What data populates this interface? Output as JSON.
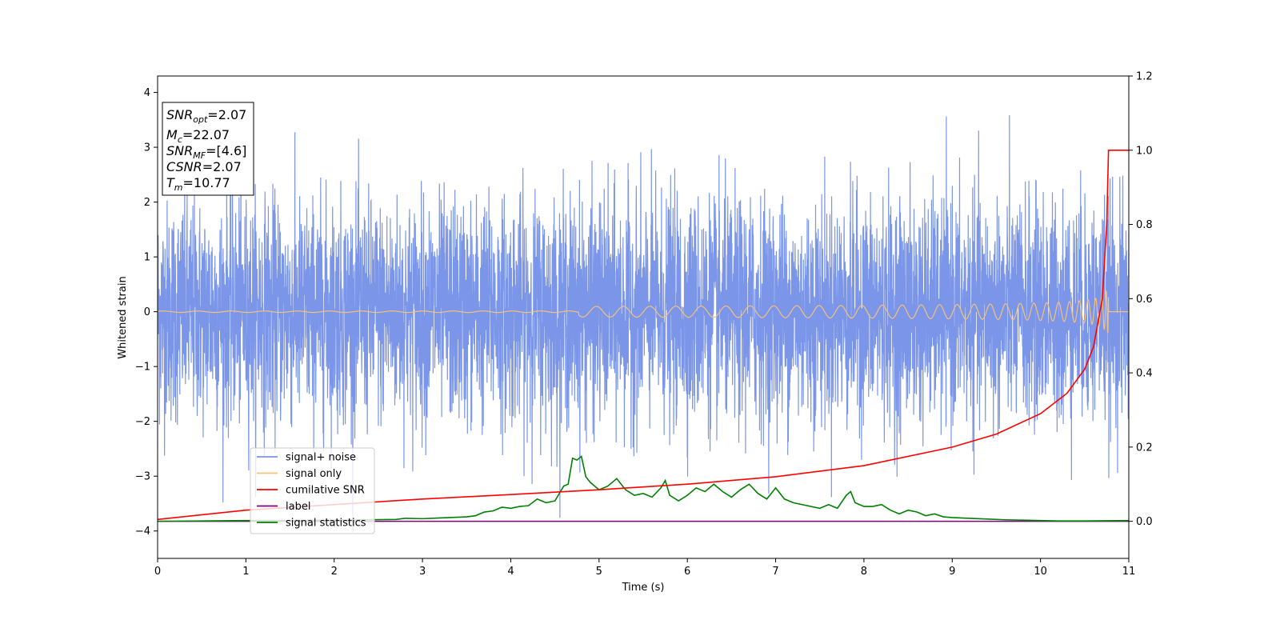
{
  "chart_data": {
    "type": "line",
    "xlabel": "Time (s)",
    "ylabel": "Whitened strain",
    "xlim": [
      0,
      11
    ],
    "ylim": [
      -4.5,
      4.3
    ],
    "ylim_right": [
      -0.1,
      1.2
    ],
    "x_ticks": [
      0,
      1,
      2,
      3,
      4,
      5,
      6,
      7,
      8,
      9,
      10,
      11
    ],
    "y_ticks": [
      -4,
      -3,
      -2,
      -1,
      0,
      1,
      2,
      3,
      4
    ],
    "y_ticks_right": [
      "0.0",
      "0.2",
      "0.4",
      "0.6",
      "0.8",
      "1.0",
      "1.2"
    ],
    "grid": false,
    "legend_position": "lower-left",
    "annotation": {
      "snr_opt": {
        "base": "SNR",
        "sub": "opt",
        "value": "=2.07"
      },
      "mc": {
        "base": "M",
        "sub": "c",
        "value": "=22.07"
      },
      "snr_mf": {
        "base": "SNR",
        "sub": "MF",
        "value": "=[4.6]"
      },
      "csnr": {
        "base": "CSNR",
        "sub": "",
        "value": "=2.07"
      },
      "tm": {
        "base": "T",
        "sub": "m",
        "value": "=10.77"
      }
    },
    "series": [
      {
        "name": "signal+ noise",
        "color": "#7b96e8",
        "axis": "left",
        "description_range": [
          -4.2,
          3.9
        ],
        "noise_std": 1.0
      },
      {
        "name": "signal only",
        "color": "#f5c07a",
        "axis": "left",
        "merger_time": 10.77,
        "peak_amplitude": 0.4
      },
      {
        "name": "cumilative SNR",
        "color": "#ff0000",
        "axis": "right",
        "x": [
          0,
          1,
          2,
          3,
          4,
          5,
          6,
          7,
          8,
          9,
          9.5,
          10,
          10.3,
          10.5,
          10.6,
          10.7,
          10.75,
          10.77,
          11
        ],
        "y": [
          0.005,
          0.03,
          0.045,
          0.06,
          0.072,
          0.085,
          0.1,
          0.12,
          0.15,
          0.2,
          0.235,
          0.29,
          0.345,
          0.41,
          0.47,
          0.6,
          0.8,
          1.0,
          1.0
        ]
      },
      {
        "name": "label",
        "color": "#800080",
        "axis": "right",
        "x": [
          0,
          11
        ],
        "y": [
          0.0,
          0.0
        ]
      },
      {
        "name": "signal statistics",
        "color": "#008000",
        "axis": "right",
        "x": [
          0,
          1.0,
          2.0,
          2.7,
          2.8,
          3.0,
          3.2,
          3.5,
          3.6,
          3.7,
          3.8,
          3.9,
          4.0,
          4.1,
          4.2,
          4.3,
          4.4,
          4.5,
          4.6,
          4.65,
          4.7,
          4.75,
          4.8,
          4.85,
          4.9,
          5.0,
          5.1,
          5.2,
          5.3,
          5.4,
          5.5,
          5.6,
          5.7,
          5.75,
          5.8,
          5.9,
          6.0,
          6.1,
          6.2,
          6.3,
          6.4,
          6.5,
          6.6,
          6.7,
          6.8,
          6.9,
          7.0,
          7.1,
          7.2,
          7.3,
          7.4,
          7.5,
          7.6,
          7.7,
          7.8,
          7.85,
          7.9,
          8.0,
          8.1,
          8.2,
          8.3,
          8.4,
          8.5,
          8.6,
          8.7,
          8.8,
          8.9,
          9.0,
          9.2,
          9.4,
          9.6,
          9.8,
          10.0,
          10.2,
          10.5,
          11.0
        ],
        "y": [
          0.0,
          0.002,
          0.003,
          0.005,
          0.008,
          0.007,
          0.009,
          0.012,
          0.015,
          0.025,
          0.028,
          0.038,
          0.035,
          0.04,
          0.042,
          0.06,
          0.05,
          0.055,
          0.095,
          0.1,
          0.17,
          0.165,
          0.175,
          0.12,
          0.105,
          0.085,
          0.095,
          0.115,
          0.085,
          0.07,
          0.075,
          0.065,
          0.09,
          0.11,
          0.07,
          0.055,
          0.07,
          0.09,
          0.08,
          0.1,
          0.08,
          0.065,
          0.085,
          0.1,
          0.075,
          0.06,
          0.09,
          0.06,
          0.05,
          0.045,
          0.04,
          0.035,
          0.045,
          0.035,
          0.07,
          0.08,
          0.05,
          0.04,
          0.04,
          0.045,
          0.03,
          0.02,
          0.03,
          0.025,
          0.015,
          0.02,
          0.012,
          0.01,
          0.008,
          0.006,
          0.004,
          0.003,
          0.002,
          0.001,
          0.001,
          0.002
        ]
      }
    ]
  }
}
